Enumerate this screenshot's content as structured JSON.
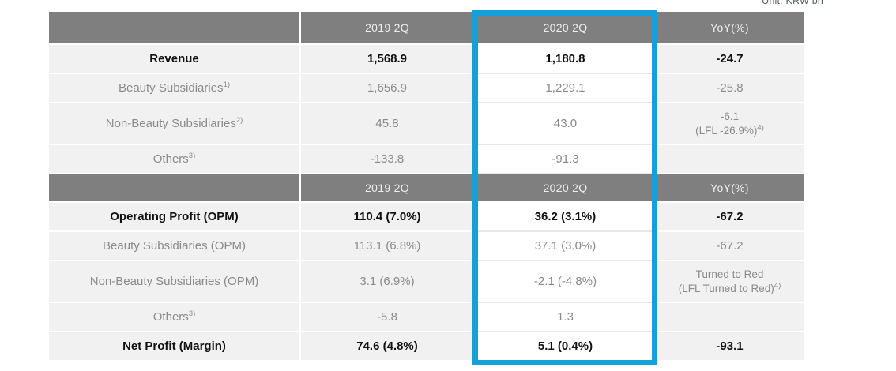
{
  "unit_note": "Unit: KRW bn",
  "colors": {
    "accent_blue": "#14a0da",
    "header_gray": "#7f7f7f",
    "row_bg": "#f1f1f1",
    "highlight_bg": "#ffffff"
  },
  "header1": {
    "c2": "2019 2Q",
    "c3": "2020 2Q",
    "c4": "YoY(%)"
  },
  "header2": {
    "c2": "2019 2Q",
    "c3": "2020 2Q",
    "c4": "YoY(%)"
  },
  "rows": [
    {
      "label": "Revenue",
      "v2019": "1,568.9",
      "v2020": "1,180.8",
      "yoy": "-24.7"
    },
    {
      "label": "Beauty Subsidiaries",
      "sup": "1)",
      "v2019": "1,656.9",
      "v2020": "1,229.1",
      "yoy": "-25.8"
    },
    {
      "label": "Non-Beauty Subsidiaries",
      "sup": "2)",
      "v2019": "45.8",
      "v2020": "43.0",
      "yoy": "-6.1",
      "yoy2": "(LFL -26.9%)",
      "yoy2sup": "4)"
    },
    {
      "label": "Others",
      "sup": "3)",
      "v2019": "-133.8",
      "v2020": "-91.3",
      "yoy": ""
    },
    {
      "label": "Operating Profit (OPM)",
      "v2019": "110.4 (7.0%)",
      "v2020": "36.2 (3.1%)",
      "yoy": "-67.2"
    },
    {
      "label": "Beauty Subsidiaries (OPM)",
      "v2019": "113.1 (6.8%)",
      "v2020": "37.1 (3.0%)",
      "yoy": "-67.2"
    },
    {
      "label": "Non-Beauty Subsidiaries (OPM)",
      "v2019": "3.1 (6.9%)",
      "v2020": "-2.1 (-4.8%)",
      "yoy": "Turned to Red",
      "yoy2": "(LFL Turned to Red)",
      "yoy2sup": "4)"
    },
    {
      "label": "Others",
      "sup": "3)",
      "v2019": "-5.8",
      "v2020": "1.3",
      "yoy": ""
    },
    {
      "label": "Net Profit (Margin)",
      "v2019": "74.6 (4.8%)",
      "v2020": "5.1 (0.4%)",
      "yoy": "-93.1"
    }
  ]
}
